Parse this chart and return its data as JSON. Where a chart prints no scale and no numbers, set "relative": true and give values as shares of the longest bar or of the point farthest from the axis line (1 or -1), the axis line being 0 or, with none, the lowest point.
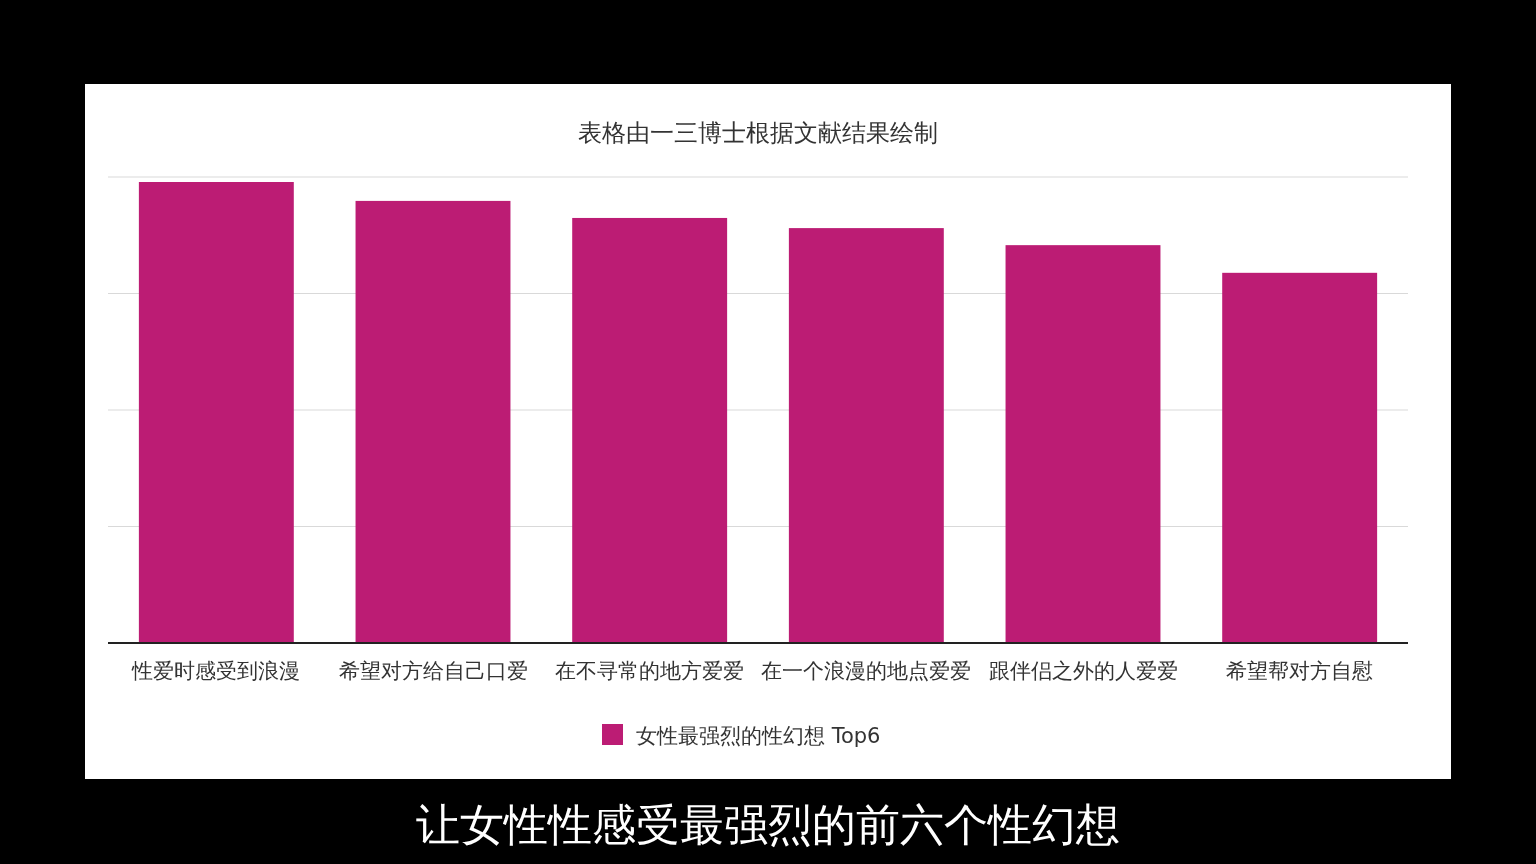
{
  "chart_data": {
    "type": "bar",
    "title": "表格由一三博士根据文献结果绘制",
    "relative": true,
    "grid": "y",
    "legend": "bottom",
    "categories": [
      "性爱时感受到浪漫",
      "希望对方给自己口爱",
      "在不寻常的地方爱爱",
      "在一个浪漫的地点爱爱",
      "跟伴侣之外的人爱爱",
      "希望帮对方自慰"
    ],
    "series": [
      {
        "name": "女性最强烈的性幻想 Top6",
        "color": "#bc1c74",
        "values": [
          1,
          0.959,
          0.922,
          0.9,
          0.863,
          0.803
        ]
      }
    ],
    "annotations": [
      "让女性性感受最强烈的前六个性幻想"
    ]
  }
}
